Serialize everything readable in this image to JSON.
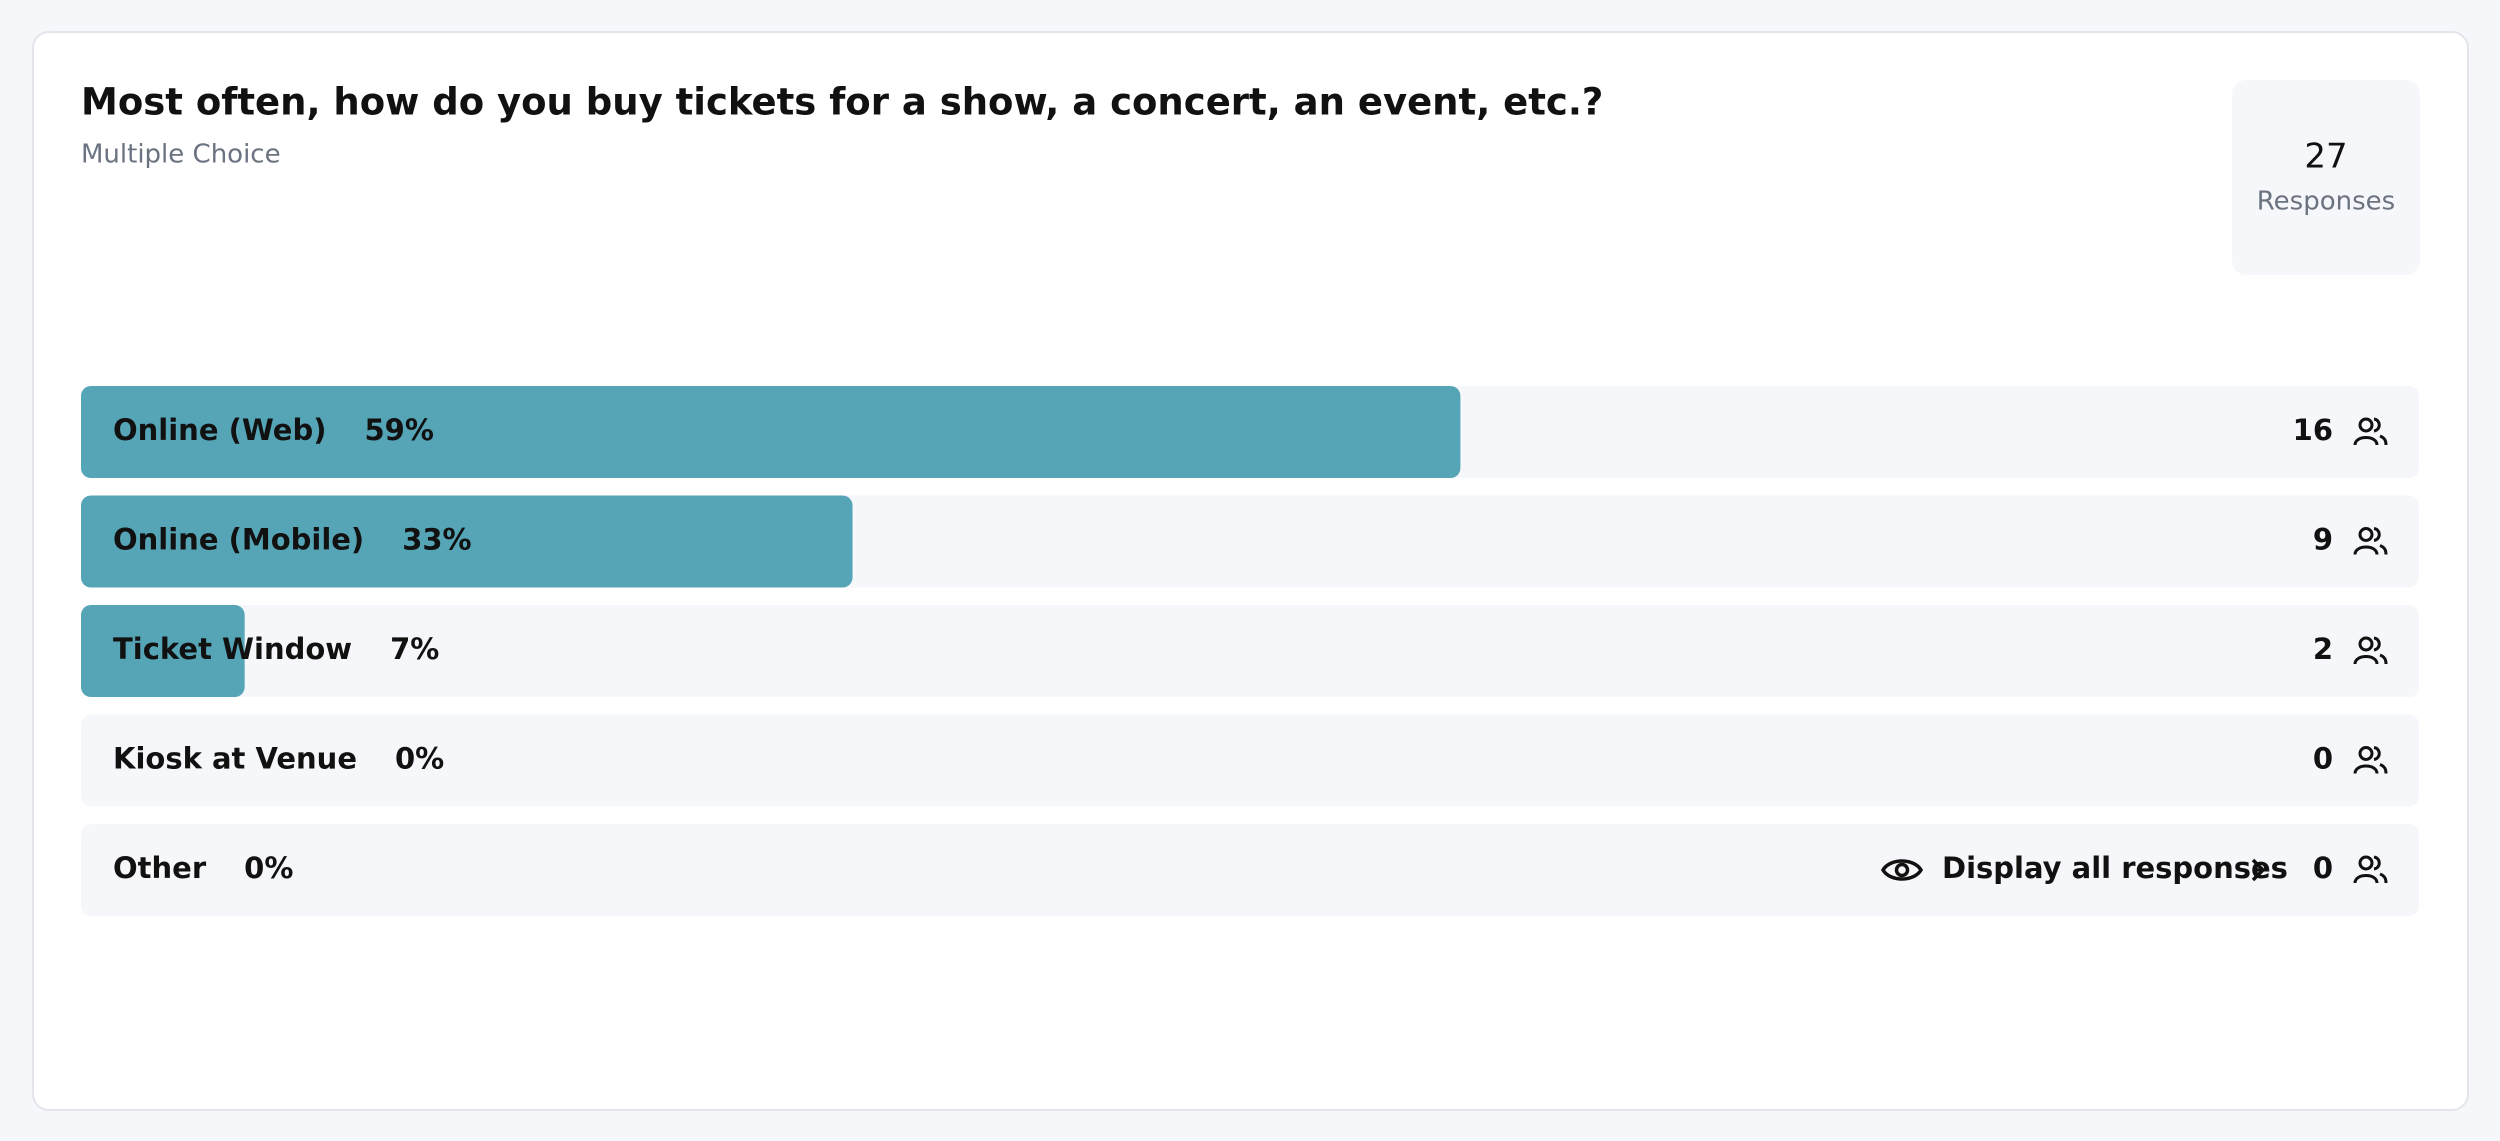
{
  "chart_data": {
    "type": "bar",
    "title": "Most often, how do you buy tickets for a show, a concert, an event, etc.?",
    "subtitle": "Multiple Choice",
    "responses_count": 27,
    "responses_label": "Responses",
    "categories": [
      "Online (Web)",
      "Online (Mobile)",
      "Ticket Window",
      "Kiosk at Venue",
      "Other"
    ],
    "values": [
      59,
      33,
      7,
      0,
      0
    ],
    "value_labels": [
      "59%",
      "33%",
      "7%",
      "0%",
      "0%"
    ],
    "counts": [
      16,
      9,
      2,
      0,
      0
    ],
    "xlim": [
      0,
      100
    ],
    "color": "#55a5b7",
    "link_label": "Display all responses"
  }
}
